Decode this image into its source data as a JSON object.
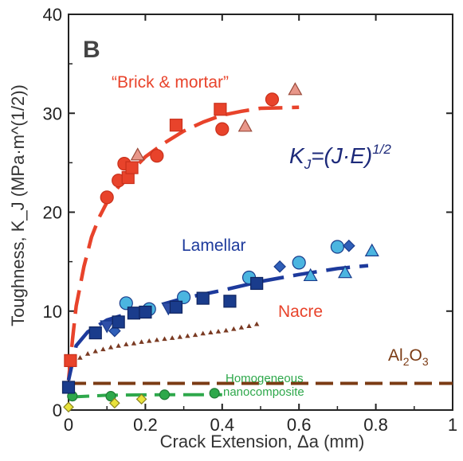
{
  "panel_label": "B",
  "chart_data": {
    "type": "scatter",
    "xlabel": "Crack Extension, Δa (mm)",
    "ylabel": "Toughness, K_J (MPa·m^(1/2))",
    "xlim": [
      0,
      1
    ],
    "ylim": [
      0,
      40
    ],
    "xticks": [
      "0",
      "0.2",
      "0.4",
      "0.6",
      "0.8",
      "1"
    ],
    "yticks": [
      "0",
      "10",
      "20",
      "30",
      "40"
    ],
    "grid": false,
    "annotations": {
      "brick_mortar": "“Brick & mortar”",
      "lamellar": "Lamellar",
      "nacre": "Nacre",
      "alumina_main": "Al",
      "alumina_sub": "2",
      "alumina_end": "O",
      "alumina_end_sub": "3",
      "homog_line1": "Homogeneous",
      "homog_line2": "nanocomposite",
      "formula_k": "K",
      "formula_sub": "J",
      "formula_body": "=(J·E)",
      "formula_exp": "1/2"
    },
    "colors": {
      "brick": "#e8432b",
      "brick_dark": "#c9301b",
      "brick_tri": "#e8978a",
      "lamellar_line": "#1d3a9c",
      "lamellar_sq": "#1a3c8c",
      "lamellar_circle": "#4bb5e0",
      "nacre": "#7a3a22",
      "alumina": "#7b3b14",
      "homog": "#2ea84b",
      "homog_diamond": "#e8e23a",
      "formula": "#1d2a7a",
      "axis": "#222222"
    },
    "series": [
      {
        "key": "brick_squares",
        "marker": "square",
        "points": [
          [
            0.005,
            5
          ],
          [
            0.155,
            23.5
          ],
          [
            0.165,
            24.5
          ],
          [
            0.28,
            28.8
          ],
          [
            0.395,
            30.4
          ]
        ]
      },
      {
        "key": "brick_circles",
        "marker": "circle",
        "points": [
          [
            0.1,
            21.5
          ],
          [
            0.13,
            23.2
          ],
          [
            0.145,
            24.9
          ],
          [
            0.23,
            25.7
          ],
          [
            0.4,
            28.4
          ],
          [
            0.53,
            31.4
          ]
        ]
      },
      {
        "key": "brick_triangles",
        "marker": "triangle",
        "points": [
          [
            0.18,
            25.8
          ],
          [
            0.46,
            28.7
          ],
          [
            0.59,
            32.4
          ]
        ]
      },
      {
        "key": "brick_fit",
        "marker": "line",
        "points": [
          [
            0.0,
            3.0
          ],
          [
            0.01,
            7.0
          ],
          [
            0.02,
            10.5
          ],
          [
            0.04,
            14.5
          ],
          [
            0.06,
            17.5
          ],
          [
            0.08,
            19.5
          ],
          [
            0.1,
            21.0
          ],
          [
            0.15,
            23.6
          ],
          [
            0.2,
            25.6
          ],
          [
            0.25,
            27.0
          ],
          [
            0.3,
            28.2
          ],
          [
            0.35,
            29.1
          ],
          [
            0.4,
            29.8
          ],
          [
            0.45,
            30.2
          ],
          [
            0.5,
            30.5
          ],
          [
            0.6,
            30.6
          ]
        ]
      },
      {
        "key": "lamellar_fit",
        "marker": "line",
        "points": [
          [
            0.0,
            3.0
          ],
          [
            0.02,
            6.5
          ],
          [
            0.05,
            7.9
          ],
          [
            0.1,
            9.1
          ],
          [
            0.15,
            9.7
          ],
          [
            0.2,
            10.2
          ],
          [
            0.3,
            11.3
          ],
          [
            0.4,
            12.1
          ],
          [
            0.5,
            13.0
          ],
          [
            0.6,
            13.7
          ],
          [
            0.7,
            14.3
          ],
          [
            0.78,
            14.6
          ]
        ]
      },
      {
        "key": "lamellar_squares",
        "marker": "square",
        "points": [
          [
            0.0,
            2.3
          ],
          [
            0.07,
            7.8
          ],
          [
            0.13,
            8.9
          ],
          [
            0.17,
            9.8
          ],
          [
            0.2,
            9.9
          ],
          [
            0.28,
            10.4
          ],
          [
            0.35,
            11.3
          ],
          [
            0.42,
            11.0
          ],
          [
            0.49,
            12.8
          ]
        ]
      },
      {
        "key": "lamellar_circles",
        "marker": "circle",
        "points": [
          [
            0.15,
            10.8
          ],
          [
            0.21,
            10.2
          ],
          [
            0.3,
            11.4
          ],
          [
            0.47,
            13.4
          ],
          [
            0.6,
            14.9
          ],
          [
            0.7,
            16.5
          ]
        ]
      },
      {
        "key": "lamellar_triangles",
        "marker": "triangle",
        "points": [
          [
            0.63,
            13.6
          ],
          [
            0.72,
            13.9
          ],
          [
            0.79,
            16.1
          ]
        ]
      },
      {
        "key": "lamellar_downtri",
        "marker": "downtriangle",
        "points": [
          [
            0.1,
            8.5
          ],
          [
            0.26,
            10.3
          ]
        ]
      },
      {
        "key": "lamellar_diamonds",
        "marker": "diamond",
        "points": [
          [
            0.12,
            8.0
          ],
          [
            0.55,
            14.5
          ],
          [
            0.73,
            16.6
          ]
        ]
      },
      {
        "key": "nacre",
        "marker": "smalltriangle",
        "points": [
          [
            0.01,
            4.8
          ],
          [
            0.03,
            5.3
          ],
          [
            0.05,
            5.7
          ],
          [
            0.07,
            5.95
          ],
          [
            0.09,
            6.15
          ],
          [
            0.11,
            6.35
          ],
          [
            0.13,
            6.5
          ],
          [
            0.15,
            6.65
          ],
          [
            0.17,
            6.75
          ],
          [
            0.19,
            6.9
          ],
          [
            0.21,
            7.0
          ],
          [
            0.23,
            7.1
          ],
          [
            0.25,
            7.2
          ],
          [
            0.27,
            7.3
          ],
          [
            0.29,
            7.4
          ],
          [
            0.31,
            7.5
          ],
          [
            0.33,
            7.6
          ],
          [
            0.35,
            7.75
          ],
          [
            0.37,
            7.85
          ],
          [
            0.39,
            7.95
          ],
          [
            0.41,
            8.05
          ],
          [
            0.43,
            8.2
          ],
          [
            0.45,
            8.35
          ],
          [
            0.47,
            8.5
          ],
          [
            0.49,
            8.7
          ]
        ]
      },
      {
        "key": "alumina",
        "marker": "hline",
        "points": [
          [
            0.0,
            2.7
          ],
          [
            1.0,
            2.7
          ]
        ]
      },
      {
        "key": "homog_fit",
        "marker": "line",
        "points": [
          [
            0.0,
            1.3
          ],
          [
            0.1,
            1.5
          ],
          [
            0.25,
            1.55
          ],
          [
            0.4,
            1.55
          ]
        ]
      },
      {
        "key": "homog_circles",
        "marker": "circle",
        "points": [
          [
            0.01,
            1.4
          ],
          [
            0.11,
            1.4
          ],
          [
            0.25,
            1.55
          ],
          [
            0.38,
            1.7
          ]
        ]
      },
      {
        "key": "homog_diamonds",
        "marker": "diamond",
        "points": [
          [
            0.0,
            0.3
          ],
          [
            0.12,
            0.7
          ],
          [
            0.19,
            1.1
          ]
        ]
      }
    ]
  }
}
